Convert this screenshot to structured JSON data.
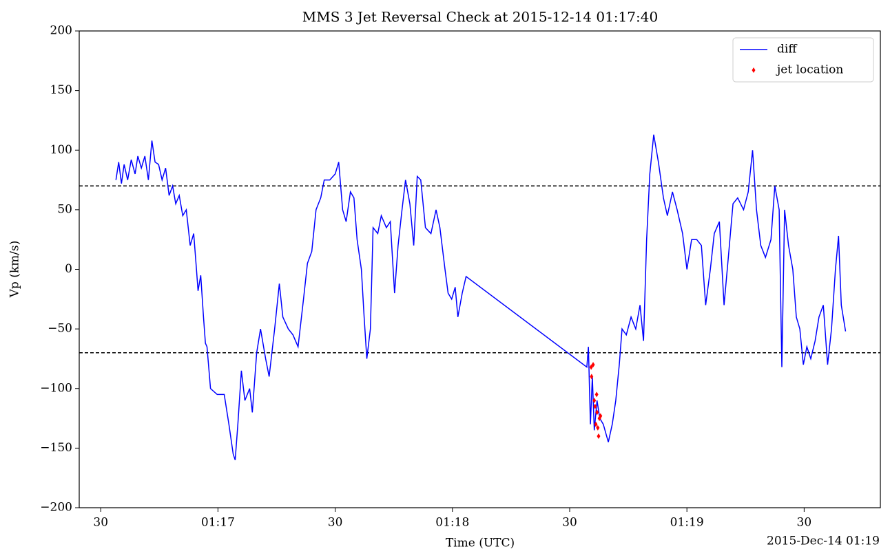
{
  "chart_data": {
    "type": "line",
    "title": "MMS 3 Jet Reversal Check at 2015-12-14 01:17:40",
    "x_label": "Time (UTC)",
    "y_label": "Vp (km/s)",
    "x_offset_label": "2015-Dec-14 01:19",
    "xlim": [
      "01:16:24.5",
      "01:19:49.5"
    ],
    "xticks": [
      {
        "value": "01:16:30",
        "label": "30"
      },
      {
        "value": "01:17:00",
        "label": "01:17"
      },
      {
        "value": "01:17:30",
        "label": "30"
      },
      {
        "value": "01:18:00",
        "label": "01:18"
      },
      {
        "value": "01:18:30",
        "label": "30"
      },
      {
        "value": "01:19:00",
        "label": "01:19"
      },
      {
        "value": "01:19:30",
        "label": "30"
      }
    ],
    "ylim": [
      -200,
      200
    ],
    "yticks": [
      {
        "value": -200,
        "label": "−200"
      },
      {
        "value": -150,
        "label": "−150"
      },
      {
        "value": -100,
        "label": "−100"
      },
      {
        "value": -50,
        "label": "−50"
      },
      0,
      50,
      100,
      150,
      200
    ],
    "hlines": [
      70,
      -70
    ],
    "hline_color": "#000000",
    "legend_position": "upper right",
    "series": [
      {
        "name": "diff",
        "color": "#0000ff",
        "marker": "line",
        "x": [
          "01:16:33.9",
          "01:16:34.6",
          "01:16:35.3",
          "01:16:36.0",
          "01:16:36.9",
          "01:16:37.8",
          "01:16:38.8",
          "01:16:39.5",
          "01:16:40.4",
          "01:16:41.3",
          "01:16:42.2",
          "01:16:43.1",
          "01:16:43.9",
          "01:16:44.8",
          "01:16:45.7",
          "01:16:46.6",
          "01:16:47.5",
          "01:16:48.4",
          "01:16:49.2",
          "01:16:50.1",
          "01:16:51.0",
          "01:16:51.9",
          "01:16:52.9",
          "01:16:53.8",
          "01:16:54.5",
          "01:16:54.9",
          "01:16:55.6",
          "01:16:56.3",
          "01:16:56.8",
          "01:16:57.2",
          "01:16:58.1",
          "01:16:59.8",
          "01:17:01.6",
          "01:17:02.8",
          "01:17:03.9",
          "01:17:04.4",
          "01:17:05.1",
          "01:17:06.0",
          "01:17:06.9",
          "01:17:08.1",
          "01:17:08.8",
          "01:17:09.9",
          "01:17:10.9",
          "01:17:12.2",
          "01:17:13.1",
          "01:17:14.5",
          "01:17:15.7",
          "01:17:16.6",
          "01:17:18.0",
          "01:17:19.2",
          "01:17:20.5",
          "01:17:21.9",
          "01:17:22.9",
          "01:17:24.0",
          "01:17:25.1",
          "01:17:26.3",
          "01:17:27.2",
          "01:17:28.6",
          "01:17:30.0",
          "01:17:30.9",
          "01:17:31.9",
          "01:17:32.8",
          "01:17:33.9",
          "01:17:34.8",
          "01:17:35.6",
          "01:17:36.7",
          "01:17:37.4",
          "01:17:38.1",
          "01:17:39.0",
          "01:17:39.7",
          "01:17:40.9",
          "01:17:41.8",
          "01:17:43.1",
          "01:17:44.1",
          "01:17:45.2",
          "01:17:46.1",
          "01:17:47.1",
          "01:17:48.0",
          "01:17:49.1",
          "01:17:50.1",
          "01:17:51.0",
          "01:17:51.9",
          "01:17:53.1",
          "01:17:54.5",
          "01:17:55.8",
          "01:17:56.8",
          "01:17:58.1",
          "01:17:58.9",
          "01:17:59.8",
          "01:18:00.7",
          "01:18:01.4",
          "01:18:02.5",
          "01:18:03.5",
          "01:18:34.4",
          "01:18:34.8",
          "01:18:35.3",
          "01:18:35.8",
          "01:18:36.3",
          "01:18:37.0",
          "01:18:37.7",
          "01:18:38.6",
          "01:18:39.9",
          "01:18:40.9",
          "01:18:41.8",
          "01:18:42.7",
          "01:18:43.4",
          "01:18:44.5",
          "01:18:45.7",
          "01:18:46.9",
          "01:18:48.0",
          "01:18:48.9",
          "01:18:49.7",
          "01:18:50.5",
          "01:18:51.5",
          "01:18:52.7",
          "01:18:54.0",
          "01:18:55.0",
          "01:18:56.3",
          "01:18:57.5",
          "01:18:58.9",
          "01:19:00.0",
          "01:19:01.2",
          "01:19:02.5",
          "01:19:03.7",
          "01:19:04.8",
          "01:19:06.0",
          "01:19:07.0",
          "01:19:08.3",
          "01:19:09.5",
          "01:19:10.6",
          "01:19:11.8",
          "01:19:13.0",
          "01:19:14.5",
          "01:19:15.7",
          "01:19:16.8",
          "01:19:17.8",
          "01:19:18.9",
          "01:19:20.1",
          "01:19:21.5",
          "01:19:22.5",
          "01:19:23.6",
          "01:19:24.3",
          "01:19:25.0",
          "01:19:26.0",
          "01:19:27.1",
          "01:19:28.0",
          "01:19:28.9",
          "01:19:29.8",
          "01:19:30.7",
          "01:19:31.7",
          "01:19:32.8",
          "01:19:33.8",
          "01:19:34.9",
          "01:19:36.0",
          "01:19:37.0",
          "01:19:38.0",
          "01:19:38.8",
          "01:19:39.5",
          "01:19:40.6"
        ],
        "values": [
          75,
          90,
          72,
          88,
          75,
          92,
          80,
          95,
          85,
          95,
          75,
          108,
          90,
          88,
          75,
          85,
          62,
          70,
          55,
          62,
          45,
          50,
          20,
          30,
          0,
          -18,
          -5,
          -40,
          -62,
          -65,
          -100,
          -105,
          -105,
          -130,
          -155,
          -160,
          -130,
          -85,
          -110,
          -100,
          -120,
          -70,
          -50,
          -75,
          -90,
          -50,
          -12,
          -40,
          -50,
          -55,
          -65,
          -25,
          5,
          15,
          50,
          60,
          75,
          75,
          80,
          90,
          50,
          40,
          65,
          60,
          25,
          0,
          -40,
          -75,
          -50,
          35,
          30,
          45,
          35,
          40,
          -20,
          20,
          50,
          75,
          55,
          20,
          78,
          75,
          35,
          30,
          50,
          35,
          0,
          -20,
          -25,
          -15,
          -40,
          -20,
          -6,
          -82,
          -65,
          -130,
          -90,
          -135,
          -110,
          -125,
          -130,
          -145,
          -130,
          -110,
          -80,
          -50,
          -55,
          -40,
          -50,
          -30,
          -60,
          25,
          80,
          113,
          90,
          60,
          45,
          65,
          50,
          30,
          0,
          25,
          25,
          20,
          -30,
          0,
          30,
          40,
          -30,
          10,
          55,
          60,
          50,
          65,
          100,
          50,
          20,
          10,
          25,
          70,
          50,
          -82,
          50,
          20,
          0,
          -40,
          -50,
          -80,
          -65,
          -75,
          -60,
          -40,
          -30,
          -80,
          -50,
          0,
          28,
          -30,
          -52
        ]
      },
      {
        "name": "jet location",
        "color": "#ff0000",
        "marker": "diamond",
        "x": [
          "01:18:35.5",
          "01:18:35.6",
          "01:18:36.0",
          "01:18:36.3",
          "01:18:36.5",
          "01:18:36.7",
          "01:18:36.9",
          "01:18:37.0",
          "01:18:37.2",
          "01:18:37.4",
          "01:18:37.6",
          "01:18:37.9"
        ],
        "values": [
          -82,
          -90,
          -80,
          -110,
          -115,
          -130,
          -105,
          -120,
          -133,
          -140,
          -125,
          -123
        ]
      }
    ]
  }
}
